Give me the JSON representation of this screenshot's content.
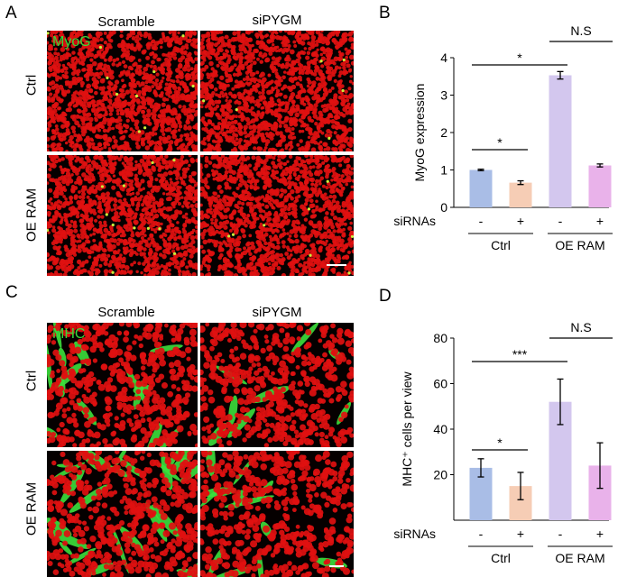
{
  "panels": {
    "A": {
      "letter": "A",
      "col_headers": [
        "Scramble",
        "siPYGM"
      ],
      "row_headers": [
        "Ctrl",
        "OE RAM"
      ],
      "stain": "MyoG"
    },
    "B": {
      "letter": "B"
    },
    "C": {
      "letter": "C",
      "col_headers": [
        "Scramble",
        "siPYGM"
      ],
      "row_headers": [
        "Ctrl",
        "OE RAM"
      ],
      "stain": "MHC"
    },
    "D": {
      "letter": "D"
    }
  },
  "colors": {
    "nuclei": "#e01010",
    "myog_green": "#3ce03c",
    "ctrl_scramble": "#a9bde6",
    "ctrl_si": "#f6cdb5",
    "oe_scramble": "#d3c7ee",
    "oe_si": "#e9b2ea"
  },
  "chart_data": [
    {
      "type": "bar",
      "panel": "B",
      "ylabel": "MyoG expression",
      "ylim": [
        0,
        4
      ],
      "yticks": [
        0,
        1,
        2,
        3,
        4
      ],
      "categories": [
        "-",
        "+",
        "-",
        "+"
      ],
      "category_row_label": "siRNAs",
      "groups": [
        {
          "label": "Ctrl",
          "categories": [
            0,
            1
          ]
        },
        {
          "label": "OE RAM",
          "categories": [
            2,
            3
          ]
        }
      ],
      "values": [
        1.0,
        0.66,
        3.53,
        1.12
      ],
      "errors": [
        0.02,
        0.05,
        0.1,
        0.04
      ],
      "bar_colors": [
        "#a9bde6",
        "#f6cdb5",
        "#d3c7ee",
        "#e9b2ea"
      ],
      "significance": [
        {
          "from": 0,
          "to": 1,
          "label": "*"
        },
        {
          "from": 0,
          "to": 2,
          "label": "*"
        },
        {
          "from": 2,
          "to": 3,
          "label": "N.S"
        }
      ],
      "grid": false
    },
    {
      "type": "bar",
      "panel": "D",
      "ylabel": "MHC⁺ cells per view",
      "ylim": [
        0,
        80
      ],
      "yticks": [
        20,
        40,
        60,
        80
      ],
      "categories": [
        "-",
        "+",
        "-",
        "+"
      ],
      "category_row_label": "siRNAs",
      "groups": [
        {
          "label": "Ctrl",
          "categories": [
            0,
            1
          ]
        },
        {
          "label": "OE RAM",
          "categories": [
            2,
            3
          ]
        }
      ],
      "values": [
        23,
        15,
        52,
        24
      ],
      "errors": [
        4,
        6,
        10,
        10
      ],
      "bar_colors": [
        "#a9bde6",
        "#f6cdb5",
        "#d3c7ee",
        "#e9b2ea"
      ],
      "significance": [
        {
          "from": 0,
          "to": 1,
          "label": "*"
        },
        {
          "from": 0,
          "to": 2,
          "label": "***"
        },
        {
          "from": 2,
          "to": 3,
          "label": "N.S"
        }
      ],
      "grid": false
    }
  ]
}
